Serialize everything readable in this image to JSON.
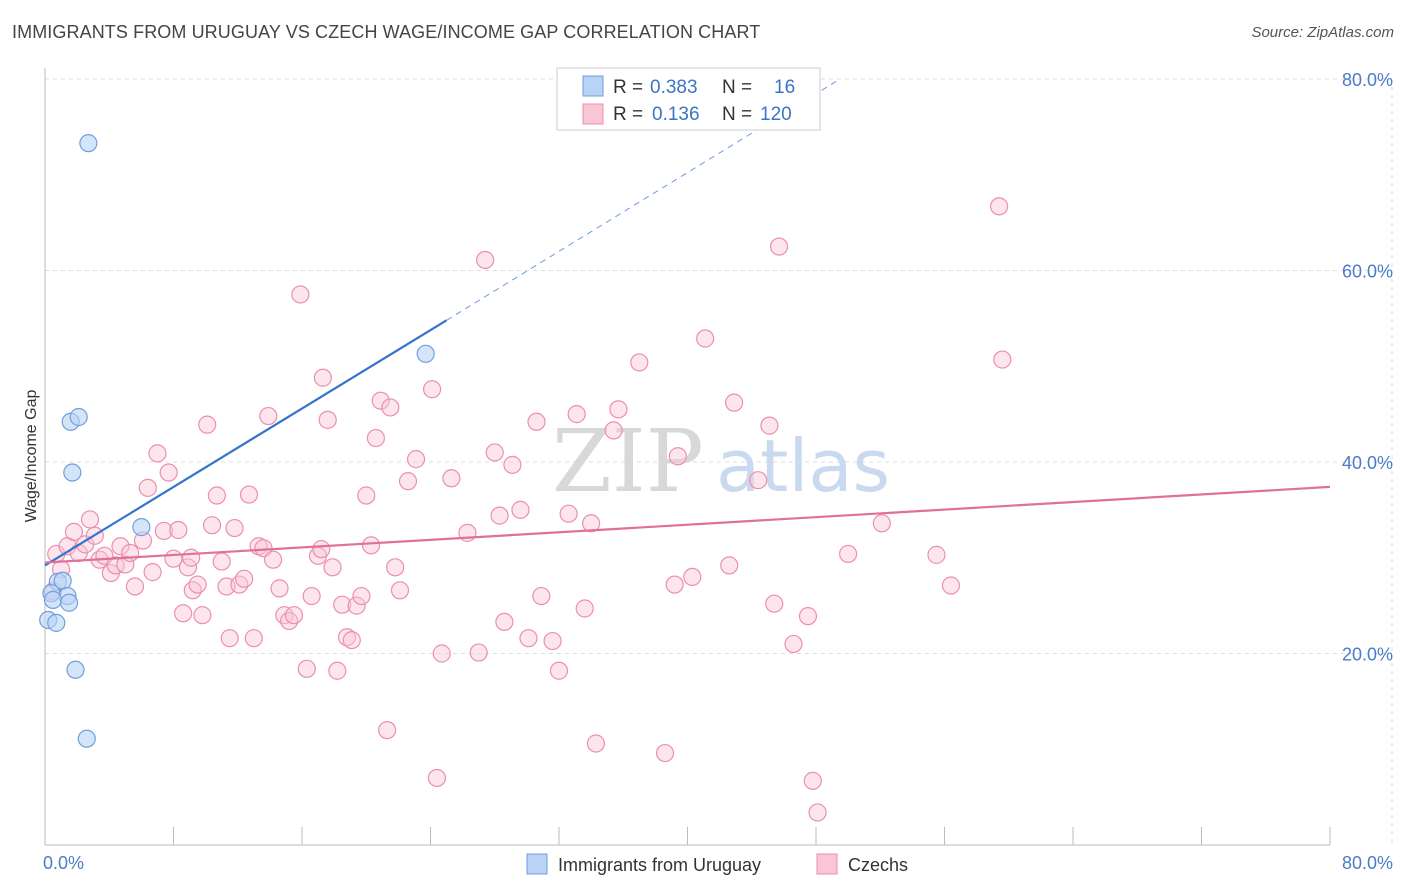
{
  "title": "IMMIGRANTS FROM URUGUAY VS CZECH WAGE/INCOME GAP CORRELATION CHART",
  "source": "Source: ZipAtlas.com",
  "watermark": {
    "zip": "ZIP",
    "atlas": "atlas"
  },
  "legend": {
    "rows": [
      {
        "r_label": "R =",
        "r_value": "0.383",
        "n_label": "N =",
        "n_value": "16"
      },
      {
        "r_label": "R =",
        "r_value": "0.136",
        "n_label": "N =",
        "n_value": "120"
      }
    ]
  },
  "colors": {
    "uruguay_fill": "#b8d3f5",
    "uruguay_stroke": "#6f9fdc",
    "uruguay_line": "#3574cc",
    "czech_fill": "#f9c6d6",
    "czech_stroke": "#ec8fae",
    "czech_line": "#e0709a",
    "grid": "#dddddd",
    "axis_text": "#4a7cc7"
  },
  "chart_data": {
    "type": "scatter",
    "xlabel": "",
    "ylabel": "Wage/Income Gap",
    "xlim": [
      0,
      80
    ],
    "ylim": [
      0,
      80
    ],
    "x_tick_labels": [
      "0.0%",
      "80.0%"
    ],
    "y_ticks": [
      20,
      40,
      60,
      80
    ],
    "y_tick_labels": [
      "20.0%",
      "40.0%",
      "60.0%",
      "80.0%"
    ],
    "grid": true,
    "legend_placement": "bottom",
    "series": [
      {
        "name": "Immigrants from Uruguay",
        "r": 0.383,
        "n": 16,
        "trend": {
          "x0": 0,
          "y0": 29.2,
          "x1": 25,
          "y1": 54.8,
          "dash_x1": 49.5,
          "dash_y1": 80
        },
        "points": [
          [
            2.7,
            73.3
          ],
          [
            1.6,
            44.2
          ],
          [
            2.1,
            44.7
          ],
          [
            1.7,
            38.9
          ],
          [
            6.0,
            33.2
          ],
          [
            23.7,
            51.3
          ],
          [
            0.8,
            27.5
          ],
          [
            1.1,
            27.6
          ],
          [
            0.4,
            26.3
          ],
          [
            1.4,
            26.0
          ],
          [
            0.5,
            25.6
          ],
          [
            1.5,
            25.3
          ],
          [
            0.2,
            23.5
          ],
          [
            0.7,
            23.2
          ],
          [
            1.9,
            18.3
          ],
          [
            2.6,
            11.1
          ]
        ]
      },
      {
        "name": "Czechs",
        "r": 0.136,
        "n": 120,
        "trend": {
          "x0": 0,
          "y0": 29.5,
          "x1": 80,
          "y1": 37.4
        },
        "points": [
          [
            0.5,
            26.5
          ],
          [
            0.7,
            30.4
          ],
          [
            1.0,
            28.8
          ],
          [
            1.4,
            31.2
          ],
          [
            1.8,
            32.7
          ],
          [
            2.1,
            30.5
          ],
          [
            2.5,
            31.4
          ],
          [
            2.8,
            34.0
          ],
          [
            3.1,
            32.3
          ],
          [
            3.4,
            29.8
          ],
          [
            3.7,
            30.2
          ],
          [
            4.1,
            28.4
          ],
          [
            4.4,
            29.2
          ],
          [
            4.7,
            31.2
          ],
          [
            5.0,
            29.3
          ],
          [
            5.3,
            30.5
          ],
          [
            5.6,
            27.0
          ],
          [
            6.1,
            31.8
          ],
          [
            6.4,
            37.3
          ],
          [
            6.7,
            28.5
          ],
          [
            7.0,
            40.9
          ],
          [
            7.4,
            32.8
          ],
          [
            7.7,
            38.9
          ],
          [
            8.0,
            29.9
          ],
          [
            8.3,
            32.9
          ],
          [
            8.6,
            24.2
          ],
          [
            8.9,
            29.0
          ],
          [
            9.2,
            26.6
          ],
          [
            9.5,
            27.2
          ],
          [
            9.8,
            24.0
          ],
          [
            10.1,
            43.9
          ],
          [
            10.4,
            33.4
          ],
          [
            10.7,
            36.5
          ],
          [
            11.0,
            29.6
          ],
          [
            11.3,
            27.0
          ],
          [
            11.5,
            21.6
          ],
          [
            11.8,
            33.1
          ],
          [
            12.1,
            27.2
          ],
          [
            12.4,
            27.8
          ],
          [
            12.7,
            36.6
          ],
          [
            13.0,
            21.6
          ],
          [
            13.3,
            31.2
          ],
          [
            13.6,
            31.0
          ],
          [
            13.9,
            44.8
          ],
          [
            14.2,
            29.8
          ],
          [
            14.6,
            26.8
          ],
          [
            14.9,
            24.0
          ],
          [
            15.2,
            23.4
          ],
          [
            15.5,
            24.0
          ],
          [
            15.9,
            57.5
          ],
          [
            16.3,
            18.4
          ],
          [
            16.6,
            26.0
          ],
          [
            17.0,
            30.2
          ],
          [
            17.3,
            48.8
          ],
          [
            17.6,
            44.4
          ],
          [
            17.9,
            29.0
          ],
          [
            18.2,
            18.2
          ],
          [
            18.5,
            25.1
          ],
          [
            18.8,
            21.7
          ],
          [
            19.1,
            21.4
          ],
          [
            19.4,
            25.0
          ],
          [
            19.7,
            26.0
          ],
          [
            20.0,
            36.5
          ],
          [
            20.3,
            31.3
          ],
          [
            20.6,
            42.5
          ],
          [
            20.9,
            46.4
          ],
          [
            21.3,
            12.0
          ],
          [
            21.5,
            45.7
          ],
          [
            21.8,
            29.0
          ],
          [
            22.1,
            26.6
          ],
          [
            22.6,
            38.0
          ],
          [
            23.1,
            40.3
          ],
          [
            24.1,
            47.6
          ],
          [
            24.4,
            7.0
          ],
          [
            24.7,
            20.0
          ],
          [
            25.3,
            38.3
          ],
          [
            26.3,
            32.6
          ],
          [
            27.0,
            20.1
          ],
          [
            27.4,
            61.1
          ],
          [
            28.0,
            41.0
          ],
          [
            28.3,
            34.4
          ],
          [
            28.6,
            23.3
          ],
          [
            29.1,
            39.7
          ],
          [
            29.6,
            35.0
          ],
          [
            30.1,
            21.6
          ],
          [
            30.6,
            44.2
          ],
          [
            30.9,
            26.0
          ],
          [
            31.6,
            21.3
          ],
          [
            32.0,
            18.2
          ],
          [
            32.6,
            34.6
          ],
          [
            33.1,
            45.0
          ],
          [
            33.6,
            24.7
          ],
          [
            34.0,
            33.6
          ],
          [
            34.3,
            10.6
          ],
          [
            35.4,
            43.3
          ],
          [
            35.7,
            45.5
          ],
          [
            37.0,
            50.4
          ],
          [
            38.6,
            9.6
          ],
          [
            39.4,
            40.6
          ],
          [
            40.3,
            28.0
          ],
          [
            41.1,
            52.9
          ],
          [
            42.6,
            29.2
          ],
          [
            42.9,
            46.2
          ],
          [
            44.4,
            38.1
          ],
          [
            45.1,
            43.8
          ],
          [
            45.4,
            25.2
          ],
          [
            45.7,
            62.5
          ],
          [
            46.6,
            21.0
          ],
          [
            47.5,
            23.9
          ],
          [
            47.8,
            6.7
          ],
          [
            48.1,
            3.4
          ],
          [
            50.0,
            30.4
          ],
          [
            52.1,
            33.6
          ],
          [
            55.5,
            30.3
          ],
          [
            56.4,
            27.1
          ],
          [
            59.4,
            66.7
          ],
          [
            59.6,
            50.7
          ],
          [
            17.2,
            30.9
          ],
          [
            9.1,
            30.0
          ],
          [
            39.2,
            27.2
          ]
        ]
      }
    ]
  },
  "bottom_legend": [
    {
      "label": "Immigrants from Uruguay"
    },
    {
      "label": "Czechs"
    }
  ]
}
